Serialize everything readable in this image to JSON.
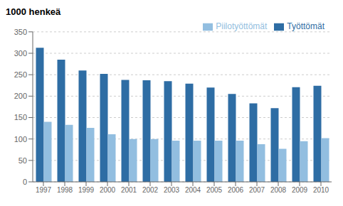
{
  "chart_data": {
    "type": "bar",
    "ylabel": "1000 henkeä",
    "categories": [
      "1997",
      "1998",
      "1999",
      "2000",
      "2001",
      "2002",
      "2003",
      "2004",
      "2005",
      "2006",
      "2007",
      "2008",
      "2009",
      "2010"
    ],
    "series": [
      {
        "name": "Työttömät",
        "color": "#2E6DA4",
        "values": [
          313,
          285,
          260,
          252,
          238,
          237,
          235,
          229,
          220,
          205,
          183,
          172,
          221,
          224
        ]
      },
      {
        "name": "Piilotyöttömät",
        "color": "#92BEE0",
        "values": [
          140,
          133,
          126,
          111,
          100,
          100,
          96,
          96,
          96,
          96,
          88,
          77,
          95,
          102
        ]
      }
    ],
    "ylim": [
      0,
      350
    ],
    "yticks": [
      0,
      50,
      100,
      150,
      200,
      250,
      300,
      350
    ],
    "grid": true,
    "legend": "upper right"
  }
}
